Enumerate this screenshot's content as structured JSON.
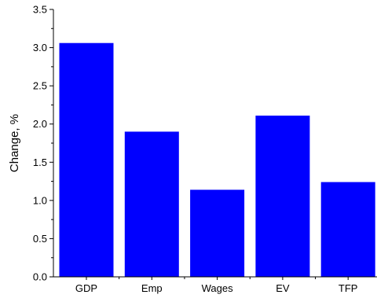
{
  "chart_data": {
    "type": "bar",
    "categories": [
      "GDP",
      "Emp",
      "Wages",
      "EV",
      "TFP"
    ],
    "values": [
      3.06,
      1.9,
      1.14,
      2.11,
      1.24
    ],
    "title": "",
    "xlabel": "",
    "ylabel": "Change, %",
    "ylim": [
      0,
      3.5
    ],
    "yticks": [
      "0.0",
      "0.5",
      "1.0",
      "1.5",
      "2.0",
      "2.5",
      "3.0",
      "3.5"
    ],
    "grid": false,
    "legend": "none",
    "bar_color": "#0000ff"
  }
}
